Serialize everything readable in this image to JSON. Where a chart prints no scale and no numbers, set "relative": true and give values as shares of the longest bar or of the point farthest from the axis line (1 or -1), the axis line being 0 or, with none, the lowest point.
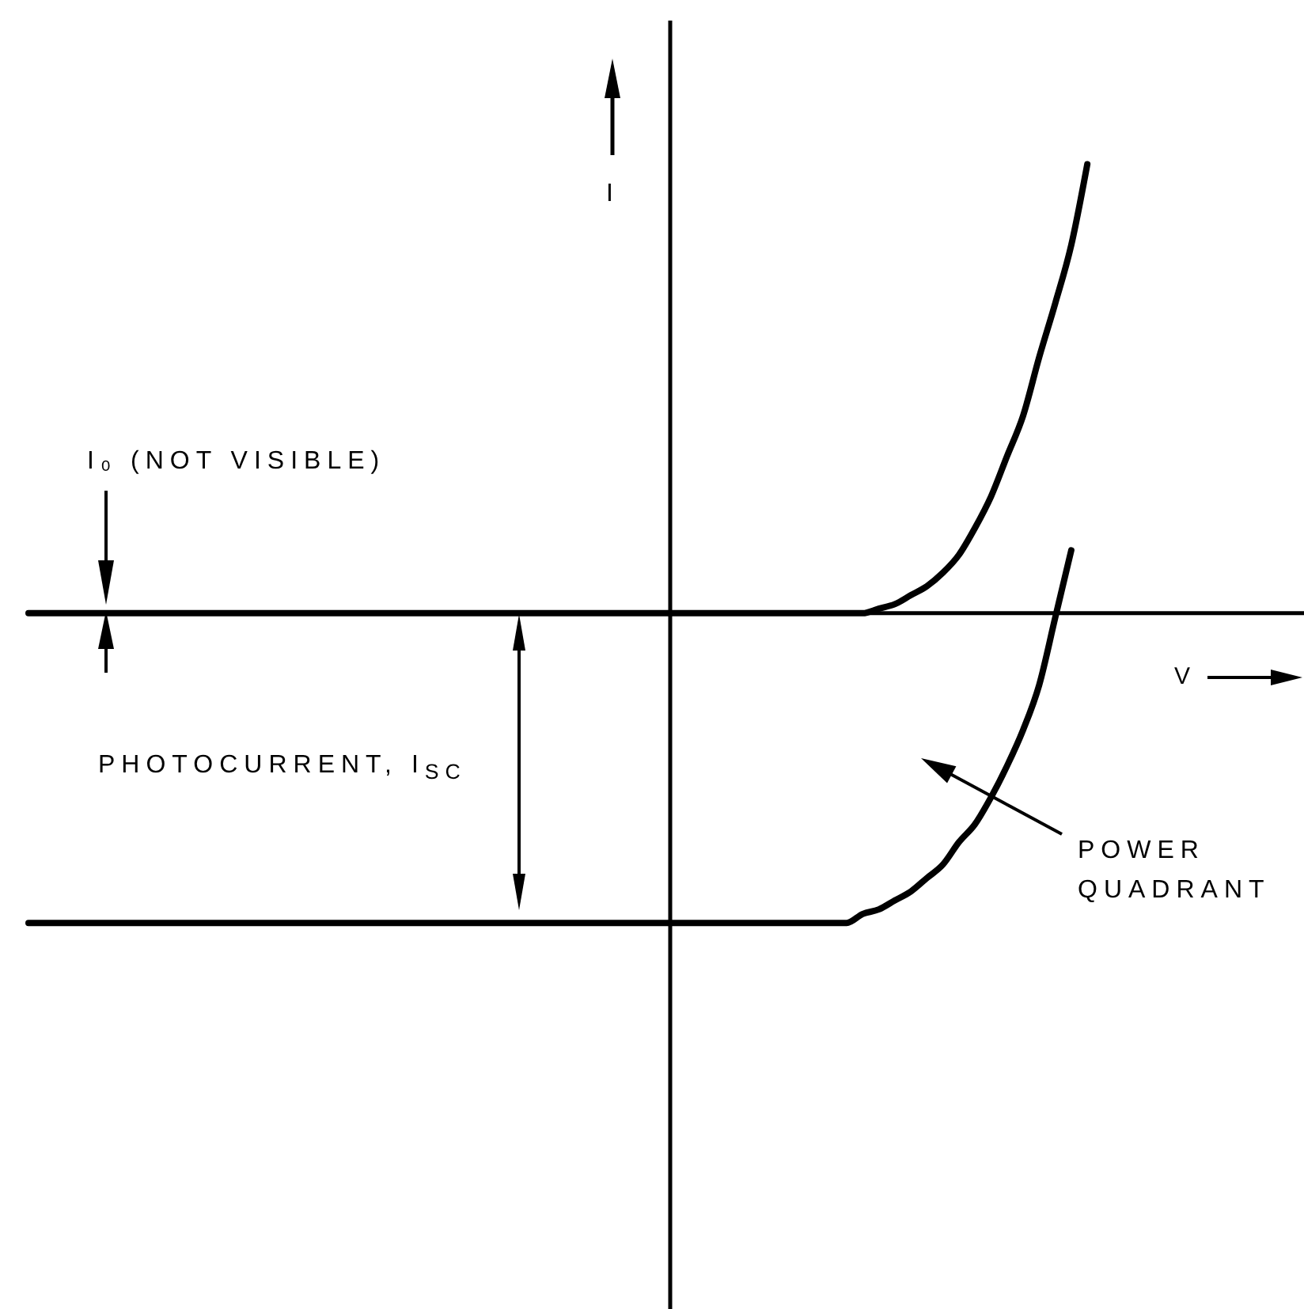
{
  "chart_data": {
    "type": "line",
    "relative": true,
    "xlabel": "V",
    "ylabel": "I",
    "categories": [
      null,
      null,
      null,
      null,
      null,
      null,
      null,
      null,
      null,
      null,
      null,
      null,
      null,
      null,
      null,
      null,
      null,
      null,
      null,
      null,
      null,
      null,
      null,
      null,
      null,
      null,
      null,
      null,
      null,
      null,
      null,
      null,
      null,
      null,
      null,
      null,
      null,
      null,
      null,
      null,
      null,
      null,
      null,
      null,
      null,
      null,
      null,
      null,
      null,
      null,
      null,
      null,
      null,
      null,
      null,
      null,
      null,
      null,
      null,
      null,
      null,
      null,
      null,
      null,
      null,
      null,
      null,
      null,
      null,
      null,
      null,
      null,
      null,
      null,
      null,
      null,
      null,
      null,
      null,
      null,
      null
    ],
    "series": [
      {
        "color": "#000000",
        "values": [
          0,
          0,
          0,
          0,
          0,
          0,
          0,
          0,
          0,
          0,
          0,
          0,
          0,
          0,
          0,
          0,
          0,
          0,
          0,
          0,
          0,
          0,
          0,
          0,
          0,
          0,
          0,
          0,
          0,
          0,
          0,
          0,
          0,
          0,
          0,
          0,
          0,
          0,
          0,
          0,
          0,
          0,
          0,
          0,
          0,
          0,
          0,
          0,
          0,
          0,
          0,
          0,
          0,
          0.01,
          0.02,
          0.04,
          0.06,
          0.09,
          0.13,
          0.19,
          0.26,
          0.35,
          0.44,
          0.57,
          0.69,
          0.82,
          1,
          null,
          null,
          null,
          null,
          null,
          null,
          null,
          null,
          null,
          null,
          null,
          null,
          null,
          null
        ]
      },
      {
        "color": "#000000",
        "values": [
          -0.69,
          -0.69,
          -0.69,
          -0.69,
          -0.69,
          -0.69,
          -0.69,
          -0.69,
          -0.69,
          -0.69,
          -0.69,
          -0.69,
          -0.69,
          -0.69,
          -0.69,
          -0.69,
          -0.69,
          -0.69,
          -0.69,
          -0.69,
          -0.69,
          -0.69,
          -0.69,
          -0.69,
          -0.69,
          -0.69,
          -0.69,
          -0.69,
          -0.69,
          -0.69,
          -0.69,
          -0.69,
          -0.69,
          -0.69,
          -0.69,
          -0.69,
          -0.69,
          -0.69,
          -0.69,
          -0.69,
          -0.69,
          -0.69,
          -0.69,
          -0.69,
          -0.69,
          -0.69,
          -0.69,
          -0.69,
          -0.69,
          -0.69,
          -0.69,
          -0.69,
          -0.67,
          -0.66,
          -0.64,
          -0.62,
          -0.59,
          -0.56,
          -0.51,
          -0.47,
          -0.41,
          -0.34,
          -0.26,
          -0.16,
          -0.01,
          0.14,
          null,
          null,
          null,
          null,
          null,
          null,
          null,
          null,
          null,
          null,
          null,
          null,
          null,
          null,
          null
        ]
      }
    ],
    "annotations": [
      "I₀ (NOT VISIBLE)",
      "PHOTOCURRENT, I$_{SC}$",
      "POWER QUADRANT"
    ]
  }
}
